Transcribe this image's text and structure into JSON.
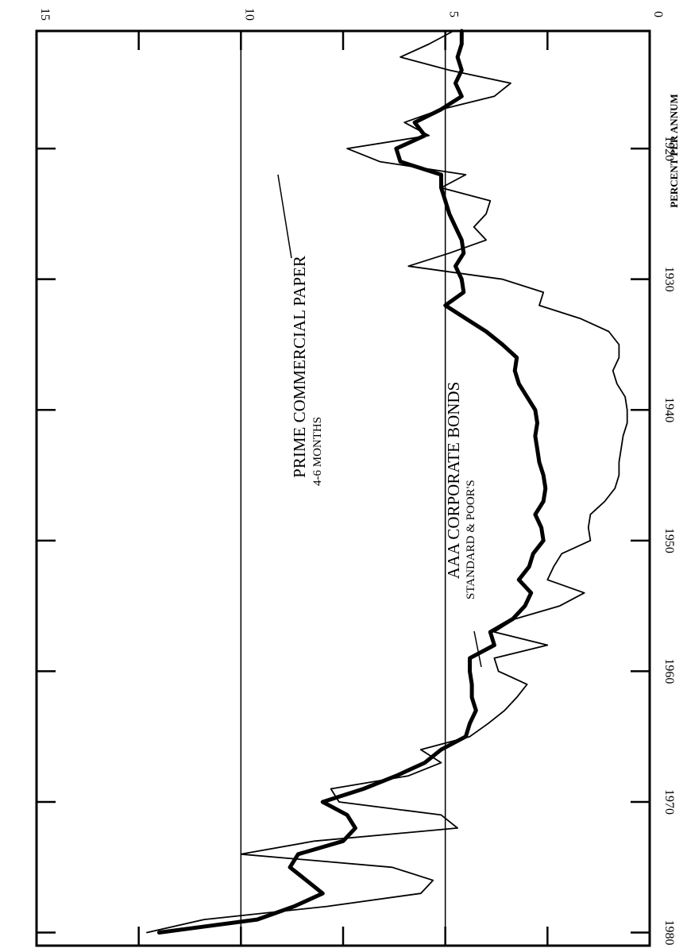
{
  "chart_data": {
    "type": "line",
    "ylabel": "PERCENT PER ANNUM",
    "x_ticks": [
      "1920",
      "1930",
      "1940",
      "1950",
      "1960",
      "1970",
      "1980"
    ],
    "y_ticks": [
      "0",
      "5",
      "10",
      "15"
    ],
    "xlim": [
      1911,
      1981
    ],
    "ylim": [
      0,
      15
    ],
    "grid_y": [
      5,
      10
    ],
    "colors": {
      "line": "#000000",
      "background": "#ffffff"
    },
    "annotations": [
      {
        "name": "prime-commercial-paper",
        "text": "PRIME COMMERCIAL PAPER",
        "subtext": "4-6 MONTHS",
        "series": "prime_commercial_paper"
      },
      {
        "name": "aaa-corporate-bonds",
        "text": "AAA CORPORATE BONDS",
        "subtext": "STANDARD & POOR'S",
        "series": "aaa_corporate_bonds"
      }
    ],
    "series": [
      {
        "key": "prime_commercial_paper",
        "style": "thin",
        "points": [
          [
            1911,
            4.8
          ],
          [
            1912,
            5.4
          ],
          [
            1913,
            6.1
          ],
          [
            1914,
            4.9
          ],
          [
            1915,
            3.4
          ],
          [
            1916,
            3.8
          ],
          [
            1917,
            5.1
          ],
          [
            1918,
            6.0
          ],
          [
            1919,
            5.4
          ],
          [
            1920,
            7.4
          ],
          [
            1921,
            6.6
          ],
          [
            1922,
            4.5
          ],
          [
            1923,
            5.1
          ],
          [
            1924,
            3.9
          ],
          [
            1925,
            4.0
          ],
          [
            1926,
            4.3
          ],
          [
            1927,
            4.0
          ],
          [
            1928,
            4.9
          ],
          [
            1929,
            5.9
          ],
          [
            1930,
            3.6
          ],
          [
            1931,
            2.6
          ],
          [
            1932,
            2.7
          ],
          [
            1933,
            1.7
          ],
          [
            1934,
            1.0
          ],
          [
            1935,
            0.75
          ],
          [
            1936,
            0.75
          ],
          [
            1937,
            0.9
          ],
          [
            1938,
            0.8
          ],
          [
            1939,
            0.6
          ],
          [
            1940,
            0.55
          ],
          [
            1941,
            0.55
          ],
          [
            1942,
            0.65
          ],
          [
            1943,
            0.7
          ],
          [
            1944,
            0.75
          ],
          [
            1945,
            0.75
          ],
          [
            1946,
            0.85
          ],
          [
            1947,
            1.1
          ],
          [
            1948,
            1.45
          ],
          [
            1949,
            1.5
          ],
          [
            1950,
            1.45
          ],
          [
            1951,
            2.15
          ],
          [
            1952,
            2.35
          ],
          [
            1953,
            2.5
          ],
          [
            1954,
            1.6
          ],
          [
            1955,
            2.2
          ],
          [
            1956,
            3.3
          ],
          [
            1957,
            3.8
          ],
          [
            1958,
            2.5
          ],
          [
            1959,
            3.8
          ],
          [
            1960,
            3.7
          ],
          [
            1961,
            3.0
          ],
          [
            1962,
            3.25
          ],
          [
            1963,
            3.55
          ],
          [
            1964,
            3.95
          ],
          [
            1965,
            4.4
          ],
          [
            1966,
            5.6
          ],
          [
            1967,
            5.1
          ],
          [
            1968,
            5.9
          ],
          [
            1969,
            7.8
          ],
          [
            1970,
            7.6
          ],
          [
            1971,
            5.1
          ],
          [
            1972,
            4.7
          ],
          [
            1973,
            8.2
          ],
          [
            1974,
            10.0
          ],
          [
            1975,
            6.3
          ],
          [
            1976,
            5.3
          ],
          [
            1977,
            5.6
          ],
          [
            1978,
            7.9
          ],
          [
            1979,
            10.9
          ],
          [
            1980,
            12.3
          ]
        ]
      },
      {
        "key": "aaa_corporate_bonds",
        "style": "thick",
        "points": [
          [
            1911,
            4.6
          ],
          [
            1912,
            4.6
          ],
          [
            1913,
            4.7
          ],
          [
            1914,
            4.6
          ],
          [
            1915,
            4.75
          ],
          [
            1916,
            4.6
          ],
          [
            1917,
            5.1
          ],
          [
            1918,
            5.75
          ],
          [
            1919,
            5.5
          ],
          [
            1920,
            6.2
          ],
          [
            1921,
            6.1
          ],
          [
            1922,
            5.1
          ],
          [
            1923,
            5.1
          ],
          [
            1924,
            5.0
          ],
          [
            1925,
            4.9
          ],
          [
            1926,
            4.75
          ],
          [
            1927,
            4.6
          ],
          [
            1928,
            4.55
          ],
          [
            1929,
            4.75
          ],
          [
            1930,
            4.6
          ],
          [
            1931,
            4.55
          ],
          [
            1932,
            5.0
          ],
          [
            1933,
            4.5
          ],
          [
            1934,
            4.0
          ],
          [
            1935,
            3.6
          ],
          [
            1936,
            3.25
          ],
          [
            1937,
            3.3
          ],
          [
            1938,
            3.2
          ],
          [
            1939,
            3.0
          ],
          [
            1940,
            2.8
          ],
          [
            1941,
            2.75
          ],
          [
            1942,
            2.8
          ],
          [
            1943,
            2.75
          ],
          [
            1944,
            2.7
          ],
          [
            1945,
            2.6
          ],
          [
            1946,
            2.55
          ],
          [
            1947,
            2.6
          ],
          [
            1948,
            2.8
          ],
          [
            1949,
            2.65
          ],
          [
            1950,
            2.6
          ],
          [
            1951,
            2.85
          ],
          [
            1952,
            2.95
          ],
          [
            1953,
            3.2
          ],
          [
            1954,
            2.9
          ],
          [
            1955,
            3.05
          ],
          [
            1956,
            3.35
          ],
          [
            1957,
            3.9
          ],
          [
            1958,
            3.8
          ],
          [
            1959,
            4.4
          ],
          [
            1960,
            4.4
          ],
          [
            1961,
            4.35
          ],
          [
            1962,
            4.35
          ],
          [
            1963,
            4.25
          ],
          [
            1964,
            4.4
          ],
          [
            1965,
            4.5
          ],
          [
            1966,
            5.1
          ],
          [
            1967,
            5.5
          ],
          [
            1968,
            6.2
          ],
          [
            1969,
            7.0
          ],
          [
            1970,
            8.0
          ],
          [
            1971,
            7.4
          ],
          [
            1972,
            7.2
          ],
          [
            1973,
            7.5
          ],
          [
            1974,
            8.6
          ],
          [
            1975,
            8.8
          ],
          [
            1976,
            8.4
          ],
          [
            1977,
            8.0
          ],
          [
            1978,
            8.7
          ],
          [
            1979,
            9.6
          ],
          [
            1980,
            12.0
          ]
        ]
      }
    ]
  }
}
